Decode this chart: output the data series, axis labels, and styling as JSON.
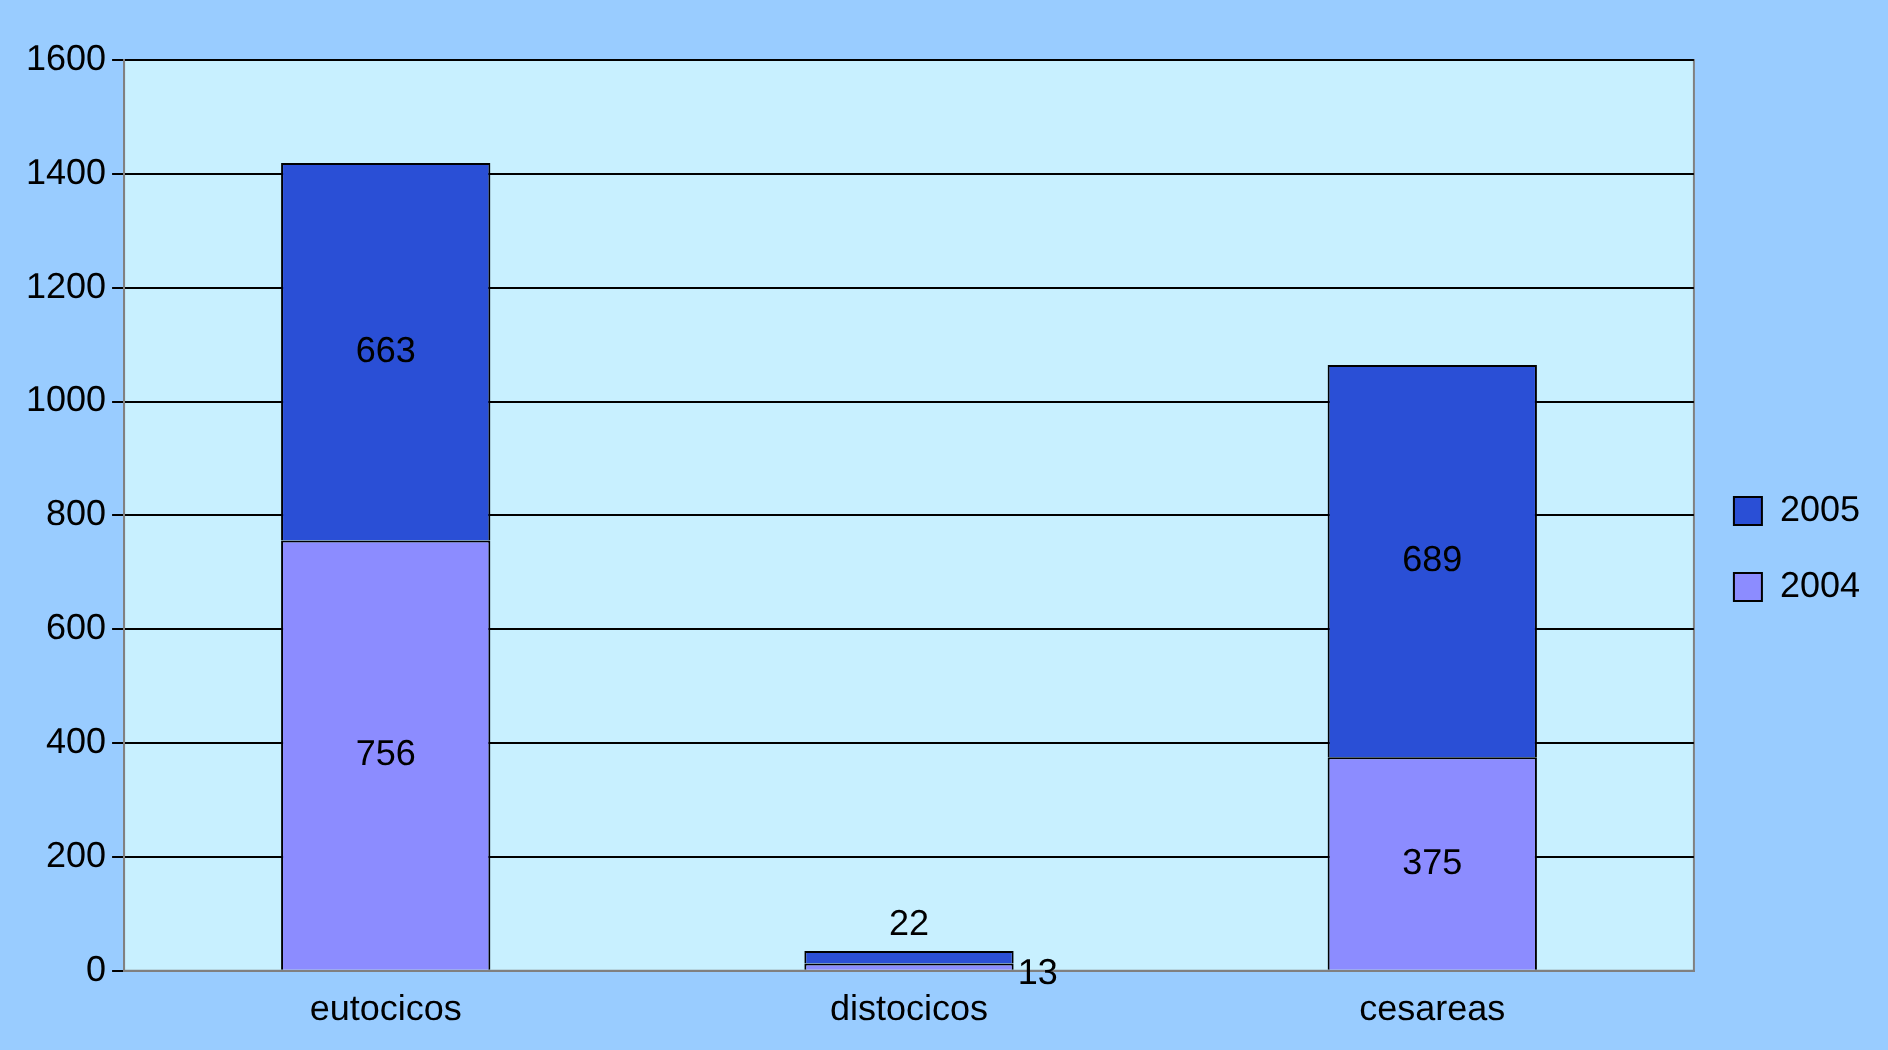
{
  "chart_data": {
    "type": "bar",
    "stacked": true,
    "categories": [
      "eutocicos",
      "distocicos",
      "cesareas"
    ],
    "series": [
      {
        "name": "2004",
        "color": "#8c8cff",
        "values": [
          756,
          13,
          375
        ]
      },
      {
        "name": "2005",
        "color": "#2a4fd6",
        "values": [
          663,
          22,
          689
        ]
      }
    ],
    "ylim": [
      0,
      1600
    ],
    "yticks": [
      0,
      200,
      400,
      600,
      800,
      1000,
      1200,
      1400,
      1600
    ],
    "grid": "y",
    "legend": "right",
    "data_labels": true
  }
}
